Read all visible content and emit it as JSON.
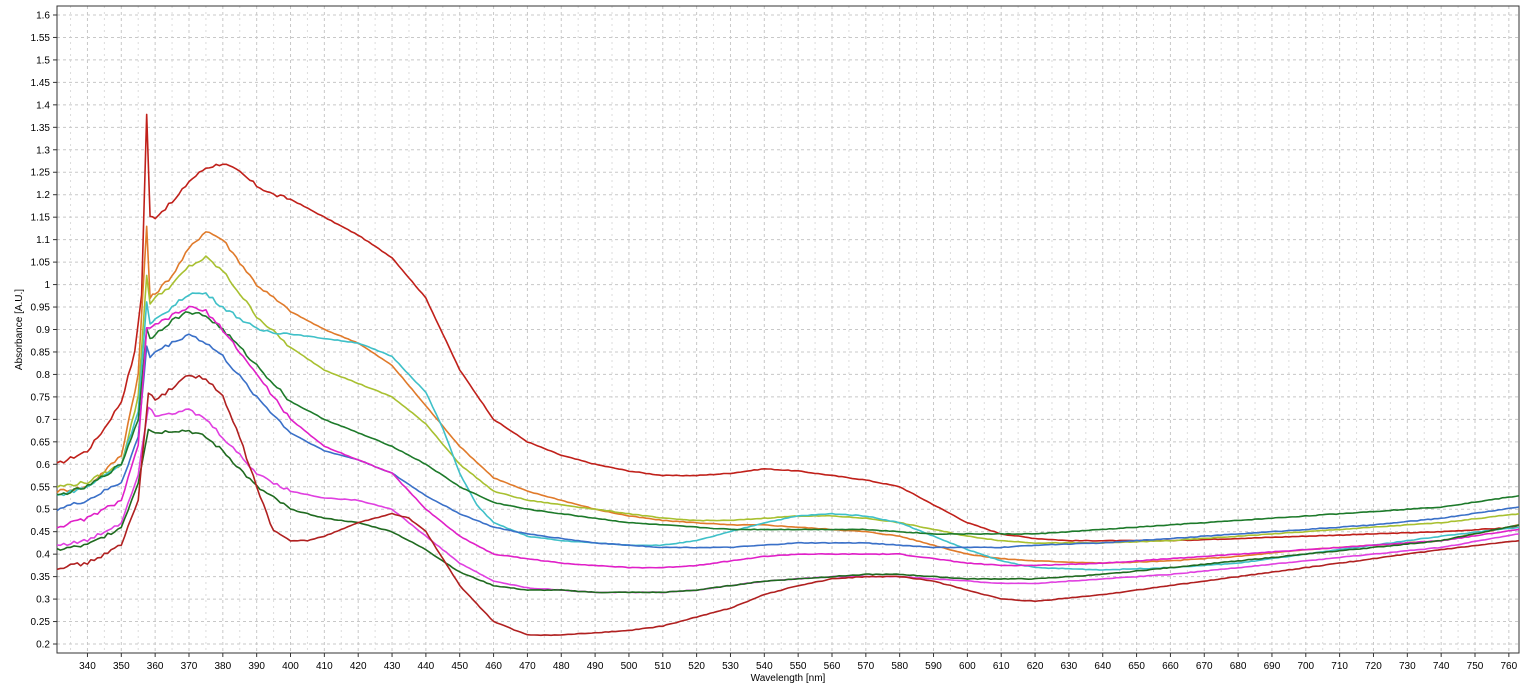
{
  "chart_data": {
    "type": "line",
    "xlabel": "Wavelength [nm]",
    "ylabel": "Absorbance [A.U.]",
    "xlim": [
      331,
      763
    ],
    "ylim": [
      0.18,
      1.62
    ],
    "grid": true,
    "x_ticks": [
      340,
      350,
      360,
      370,
      380,
      390,
      400,
      410,
      420,
      430,
      440,
      450,
      460,
      470,
      480,
      490,
      500,
      510,
      520,
      530,
      540,
      550,
      560,
      570,
      580,
      590,
      600,
      610,
      620,
      630,
      640,
      650,
      660,
      670,
      680,
      690,
      700,
      710,
      720,
      730,
      740,
      750,
      760
    ],
    "y_ticks": [
      "0.2",
      "0.25",
      "0.3",
      "0.35",
      "0.4",
      "0.45",
      "0.5",
      "0.55",
      "0.6",
      "0.65",
      "0.7",
      "0.75",
      "0.8",
      "0.85",
      "0.9",
      "0.95",
      "1",
      "1.05",
      "1.1",
      "1.15",
      "1.2",
      "1.25",
      "1.3",
      "1.35",
      "1.4",
      "1.45",
      "1.5",
      "1.55",
      "1.6"
    ],
    "series": [
      {
        "color": "#c0201a",
        "x": [
          331,
          340,
          345,
          350,
          354,
          356,
          357.5,
          358.5,
          360,
          363,
          366,
          370,
          375,
          380,
          385,
          390,
          395,
          400,
          410,
          420,
          430,
          440,
          450,
          460,
          470,
          480,
          490,
          500,
          510,
          520,
          530,
          540,
          550,
          560,
          570,
          580,
          590,
          600,
          610,
          620,
          630,
          640,
          650,
          660,
          680,
          700,
          720,
          740,
          763
        ],
        "y": [
          0.6,
          0.63,
          0.68,
          0.74,
          0.85,
          0.98,
          1.38,
          1.15,
          1.15,
          1.17,
          1.19,
          1.23,
          1.26,
          1.27,
          1.25,
          1.22,
          1.2,
          1.19,
          1.15,
          1.11,
          1.06,
          0.97,
          0.81,
          0.7,
          0.65,
          0.62,
          0.6,
          0.585,
          0.575,
          0.575,
          0.58,
          0.59,
          0.585,
          0.575,
          0.565,
          0.55,
          0.51,
          0.47,
          0.445,
          0.435,
          0.43,
          0.43,
          0.43,
          0.43,
          0.435,
          0.44,
          0.445,
          0.45,
          0.46
        ]
      },
      {
        "color": "#e07a2a",
        "x": [
          331,
          340,
          350,
          355,
          357.5,
          358.5,
          360,
          365,
          370,
          375,
          380,
          390,
          400,
          410,
          420,
          430,
          440,
          450,
          460,
          470,
          480,
          490,
          500,
          510,
          520,
          530,
          540,
          550,
          560,
          570,
          580,
          590,
          600,
          610,
          620,
          640,
          660,
          680,
          700,
          720,
          740,
          763
        ],
        "y": [
          0.54,
          0.55,
          0.62,
          0.8,
          1.13,
          0.97,
          0.98,
          1.02,
          1.08,
          1.12,
          1.1,
          1.0,
          0.94,
          0.9,
          0.87,
          0.82,
          0.73,
          0.64,
          0.57,
          0.54,
          0.52,
          0.5,
          0.485,
          0.475,
          0.47,
          0.465,
          0.465,
          0.46,
          0.455,
          0.45,
          0.44,
          0.42,
          0.4,
          0.39,
          0.385,
          0.38,
          0.385,
          0.395,
          0.41,
          0.42,
          0.43,
          0.465
        ]
      },
      {
        "color": "#a8c030",
        "x": [
          331,
          340,
          350,
          355,
          357.5,
          358.5,
          360,
          365,
          370,
          375,
          380,
          390,
          400,
          410,
          420,
          430,
          440,
          450,
          460,
          470,
          480,
          490,
          500,
          510,
          520,
          530,
          540,
          550,
          560,
          570,
          580,
          590,
          600,
          610,
          620,
          640,
          660,
          680,
          700,
          720,
          740,
          763
        ],
        "y": [
          0.55,
          0.56,
          0.6,
          0.75,
          1.02,
          0.96,
          0.97,
          1.0,
          1.04,
          1.06,
          1.03,
          0.93,
          0.86,
          0.81,
          0.78,
          0.75,
          0.69,
          0.6,
          0.54,
          0.52,
          0.51,
          0.5,
          0.49,
          0.48,
          0.475,
          0.475,
          0.48,
          0.485,
          0.485,
          0.48,
          0.47,
          0.455,
          0.44,
          0.43,
          0.425,
          0.425,
          0.43,
          0.44,
          0.45,
          0.46,
          0.47,
          0.49
        ]
      },
      {
        "color": "#3fc0c8",
        "x": [
          331,
          340,
          350,
          355,
          357.5,
          358.5,
          360,
          365,
          370,
          375,
          380,
          390,
          400,
          410,
          420,
          430,
          440,
          445,
          450,
          455,
          460,
          470,
          480,
          490,
          500,
          510,
          520,
          530,
          540,
          550,
          560,
          570,
          580,
          590,
          600,
          610,
          620,
          640,
          660,
          680,
          700,
          720,
          740,
          763
        ],
        "y": [
          0.53,
          0.55,
          0.6,
          0.72,
          0.96,
          0.91,
          0.92,
          0.95,
          0.98,
          0.98,
          0.95,
          0.9,
          0.89,
          0.88,
          0.87,
          0.84,
          0.76,
          0.68,
          0.58,
          0.51,
          0.47,
          0.44,
          0.43,
          0.425,
          0.42,
          0.42,
          0.43,
          0.45,
          0.47,
          0.485,
          0.49,
          0.485,
          0.47,
          0.44,
          0.41,
          0.385,
          0.37,
          0.365,
          0.37,
          0.38,
          0.4,
          0.42,
          0.44,
          0.46
        ]
      },
      {
        "color": "#1d7a2a",
        "x": [
          331,
          340,
          350,
          355,
          357.5,
          358.5,
          360,
          365,
          370,
          375,
          380,
          390,
          400,
          410,
          420,
          430,
          440,
          450,
          460,
          470,
          480,
          490,
          500,
          510,
          520,
          530,
          540,
          550,
          560,
          570,
          580,
          590,
          600,
          610,
          620,
          640,
          660,
          680,
          700,
          720,
          740,
          763
        ],
        "y": [
          0.53,
          0.55,
          0.6,
          0.7,
          0.9,
          0.88,
          0.89,
          0.92,
          0.94,
          0.93,
          0.9,
          0.82,
          0.74,
          0.7,
          0.67,
          0.64,
          0.6,
          0.55,
          0.515,
          0.5,
          0.49,
          0.48,
          0.47,
          0.465,
          0.46,
          0.455,
          0.455,
          0.455,
          0.455,
          0.455,
          0.45,
          0.445,
          0.445,
          0.445,
          0.445,
          0.455,
          0.465,
          0.475,
          0.485,
          0.495,
          0.505,
          0.53
        ]
      },
      {
        "color": "#3a70c8",
        "x": [
          331,
          340,
          350,
          355,
          357.5,
          358.5,
          360,
          365,
          370,
          375,
          380,
          390,
          400,
          410,
          420,
          430,
          440,
          450,
          460,
          470,
          480,
          490,
          500,
          510,
          520,
          530,
          540,
          550,
          560,
          570,
          580,
          590,
          600,
          610,
          620,
          640,
          660,
          680,
          700,
          720,
          740,
          763
        ],
        "y": [
          0.5,
          0.52,
          0.56,
          0.66,
          0.86,
          0.84,
          0.85,
          0.87,
          0.89,
          0.87,
          0.84,
          0.75,
          0.67,
          0.63,
          0.61,
          0.58,
          0.53,
          0.49,
          0.46,
          0.445,
          0.435,
          0.425,
          0.42,
          0.415,
          0.415,
          0.415,
          0.42,
          0.425,
          0.425,
          0.425,
          0.42,
          0.415,
          0.415,
          0.415,
          0.42,
          0.425,
          0.435,
          0.445,
          0.455,
          0.465,
          0.48,
          0.505
        ]
      },
      {
        "color": "#e020c8",
        "x": [
          331,
          340,
          350,
          355,
          357.5,
          358.5,
          360,
          365,
          370,
          375,
          380,
          390,
          400,
          410,
          420,
          430,
          440,
          450,
          460,
          470,
          480,
          490,
          500,
          510,
          520,
          530,
          540,
          550,
          560,
          570,
          580,
          590,
          600,
          610,
          620,
          640,
          660,
          680,
          700,
          720,
          740,
          763
        ],
        "y": [
          0.46,
          0.48,
          0.52,
          0.64,
          0.9,
          0.9,
          0.91,
          0.93,
          0.95,
          0.94,
          0.9,
          0.8,
          0.7,
          0.64,
          0.61,
          0.58,
          0.5,
          0.44,
          0.4,
          0.39,
          0.38,
          0.375,
          0.37,
          0.37,
          0.375,
          0.385,
          0.395,
          0.4,
          0.4,
          0.4,
          0.4,
          0.39,
          0.38,
          0.375,
          0.375,
          0.38,
          0.39,
          0.4,
          0.41,
          0.42,
          0.43,
          0.455
        ]
      },
      {
        "color": "#e040e0",
        "x": [
          331,
          340,
          350,
          355,
          358,
          360,
          365,
          370,
          375,
          380,
          390,
          400,
          410,
          420,
          430,
          440,
          450,
          460,
          470,
          480,
          490,
          500,
          510,
          520,
          530,
          540,
          550,
          560,
          570,
          580,
          590,
          600,
          610,
          620,
          640,
          660,
          680,
          700,
          720,
          740,
          763
        ],
        "y": [
          0.42,
          0.43,
          0.47,
          0.58,
          0.73,
          0.71,
          0.715,
          0.72,
          0.7,
          0.66,
          0.58,
          0.54,
          0.525,
          0.52,
          0.5,
          0.44,
          0.38,
          0.34,
          0.325,
          0.32,
          0.315,
          0.315,
          0.315,
          0.32,
          0.33,
          0.34,
          0.345,
          0.35,
          0.35,
          0.35,
          0.345,
          0.34,
          0.335,
          0.335,
          0.345,
          0.355,
          0.37,
          0.385,
          0.4,
          0.415,
          0.445
        ]
      },
      {
        "color": "#1f6a1f",
        "x": [
          331,
          340,
          350,
          355,
          358,
          360,
          365,
          370,
          375,
          380,
          385,
          390,
          400,
          410,
          420,
          430,
          440,
          450,
          460,
          470,
          480,
          490,
          500,
          510,
          520,
          530,
          540,
          550,
          560,
          570,
          580,
          590,
          600,
          610,
          620,
          640,
          660,
          680,
          700,
          720,
          740,
          763
        ],
        "y": [
          0.41,
          0.42,
          0.46,
          0.56,
          0.68,
          0.67,
          0.675,
          0.675,
          0.66,
          0.63,
          0.59,
          0.55,
          0.5,
          0.48,
          0.47,
          0.45,
          0.41,
          0.36,
          0.33,
          0.32,
          0.32,
          0.315,
          0.315,
          0.315,
          0.32,
          0.33,
          0.34,
          0.345,
          0.35,
          0.355,
          0.355,
          0.35,
          0.345,
          0.345,
          0.345,
          0.355,
          0.37,
          0.385,
          0.4,
          0.415,
          0.43,
          0.465
        ]
      },
      {
        "color": "#b02020",
        "x": [
          331,
          340,
          350,
          355,
          358,
          360,
          365,
          370,
          375,
          380,
          385,
          390,
          395,
          400,
          405,
          410,
          420,
          430,
          435,
          440,
          445,
          450,
          460,
          470,
          480,
          490,
          500,
          510,
          520,
          530,
          540,
          550,
          560,
          570,
          580,
          590,
          600,
          610,
          620,
          640,
          660,
          680,
          700,
          720,
          740,
          763
        ],
        "y": [
          0.37,
          0.38,
          0.42,
          0.52,
          0.76,
          0.74,
          0.77,
          0.8,
          0.79,
          0.75,
          0.66,
          0.55,
          0.45,
          0.43,
          0.43,
          0.44,
          0.47,
          0.49,
          0.48,
          0.45,
          0.39,
          0.33,
          0.25,
          0.22,
          0.22,
          0.225,
          0.23,
          0.24,
          0.26,
          0.28,
          0.31,
          0.33,
          0.345,
          0.35,
          0.35,
          0.34,
          0.32,
          0.3,
          0.295,
          0.31,
          0.33,
          0.35,
          0.37,
          0.39,
          0.41,
          0.43
        ]
      }
    ]
  }
}
